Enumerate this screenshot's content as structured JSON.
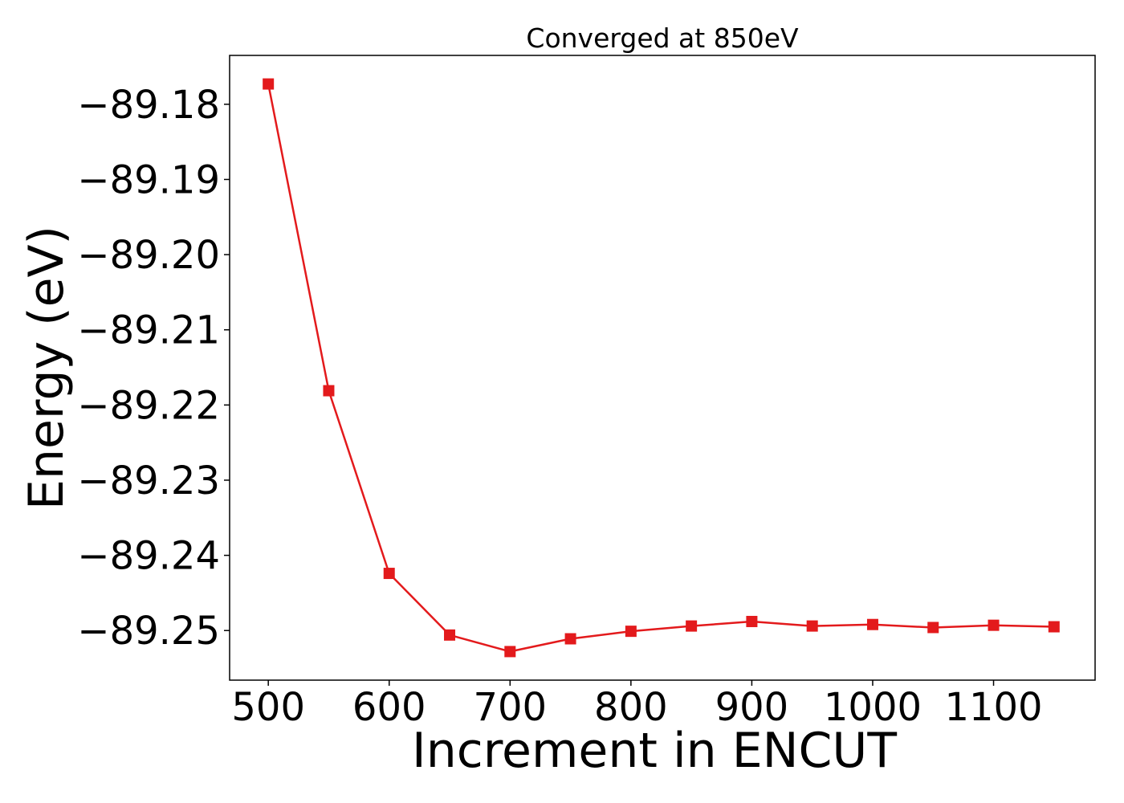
{
  "chart_data": {
    "type": "line",
    "title": "Converged at 850eV",
    "xlabel": "Increment in ENCUT",
    "ylabel": "Energy (eV)",
    "x": [
      500,
      550,
      600,
      650,
      700,
      750,
      800,
      850,
      900,
      950,
      1000,
      1050,
      1100,
      1150
    ],
    "series": [
      {
        "values": [
          -89.1773,
          -89.2181,
          -89.2424,
          -89.2506,
          -89.2528,
          -89.2511,
          -89.2501,
          -89.2494,
          -89.2488,
          -89.2494,
          -89.2492,
          -89.2496,
          -89.2493,
          -89.2495
        ],
        "color": "#e31a1c",
        "marker": "square"
      }
    ],
    "xlim": [
      468,
      1184
    ],
    "ylim": [
      -89.2566,
      -89.1735
    ],
    "xticks": [
      500,
      600,
      700,
      800,
      900,
      1000,
      1100
    ],
    "yticks": [
      -89.25,
      -89.24,
      -89.23,
      -89.22,
      -89.21,
      -89.2,
      -89.19,
      -89.18
    ],
    "xtick_labels": [
      "500",
      "600",
      "700",
      "800",
      "900",
      "1000",
      "1100"
    ],
    "ytick_labels": [
      "−89.25",
      "−89.24",
      "−89.23",
      "−89.22",
      "−89.21",
      "−89.20",
      "−89.19",
      "−89.18"
    ],
    "grid": false,
    "legend": "none"
  }
}
